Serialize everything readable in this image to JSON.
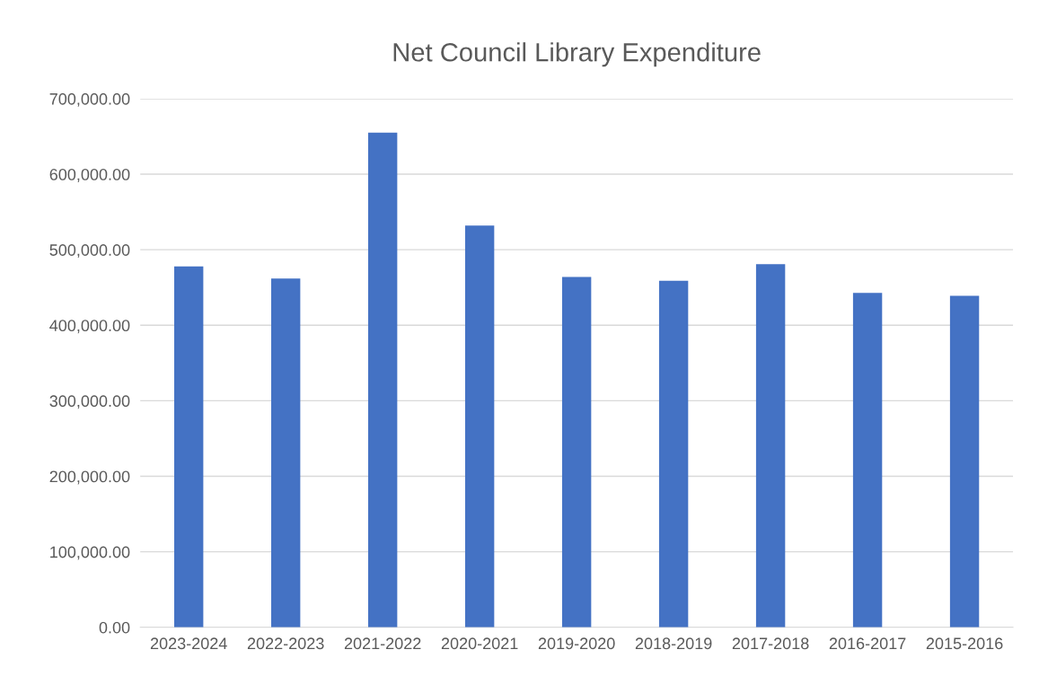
{
  "chart_data": {
    "type": "bar",
    "title": "Net Council Library Expenditure",
    "categories": [
      "2023-2024",
      "2022-2023",
      "2021-2022",
      "2020-2021",
      "2019-2020",
      "2018-2019",
      "2017-2018",
      "2016-2017",
      "2015-2016"
    ],
    "values": [
      478000,
      462000,
      655000,
      532000,
      464000,
      459000,
      481000,
      443000,
      439000
    ],
    "color": "#4472c4",
    "ylim": [
      0,
      700000
    ],
    "yticks": [
      {
        "value": 0,
        "label": "0.00"
      },
      {
        "value": 100000,
        "label": "100,000.00"
      },
      {
        "value": 200000,
        "label": "200,000.00"
      },
      {
        "value": 300000,
        "label": "300,000.00"
      },
      {
        "value": 400000,
        "label": "400,000.00"
      },
      {
        "value": 500000,
        "label": "500,000.00"
      },
      {
        "value": 600000,
        "label": "600,000.00"
      },
      {
        "value": 700000,
        "label": "700,000.00"
      }
    ],
    "grid": "y"
  }
}
